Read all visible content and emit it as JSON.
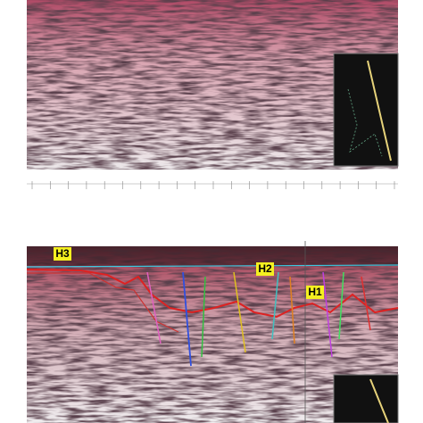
{
  "horizons": [
    {
      "label": "H3"
    },
    {
      "label": "H2"
    },
    {
      "label": "H1"
    }
  ]
}
